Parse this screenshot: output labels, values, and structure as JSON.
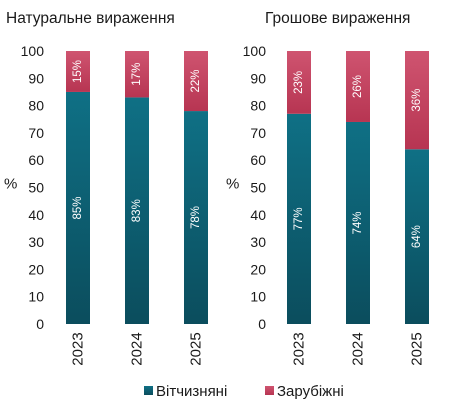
{
  "chart_data": [
    {
      "type": "bar",
      "stacked": true,
      "title": "Натуральне вираження",
      "ylabel": "%",
      "ylim": [
        0,
        100
      ],
      "yticks": [
        "0",
        "10",
        "20",
        "30",
        "40",
        "50",
        "60",
        "70",
        "80",
        "90",
        "100"
      ],
      "categories": [
        "2023",
        "2024",
        "2025"
      ],
      "series": [
        {
          "name": "Вітчизняні",
          "color": "#0f6b80",
          "values": [
            85,
            83,
            78
          ],
          "labels": [
            "85%",
            "83%",
            "78%"
          ]
        },
        {
          "name": "Зарубіжні",
          "color": "#c3415f",
          "values": [
            15,
            17,
            22
          ],
          "labels": [
            "15%",
            "17%",
            "22%"
          ]
        }
      ]
    },
    {
      "type": "bar",
      "stacked": true,
      "title": "Грошове вираження",
      "ylabel": "%",
      "ylim": [
        0,
        100
      ],
      "yticks": [
        "0",
        "10",
        "20",
        "30",
        "40",
        "50",
        "60",
        "70",
        "80",
        "90",
        "100"
      ],
      "categories": [
        "2023",
        "2024",
        "2025"
      ],
      "series": [
        {
          "name": "Вітчизняні",
          "color": "#0f6b80",
          "values": [
            77,
            74,
            64
          ],
          "labels": [
            "77%",
            "74%",
            "64%"
          ]
        },
        {
          "name": "Зарубіжні",
          "color": "#c3415f",
          "values": [
            23,
            26,
            36
          ],
          "labels": [
            "23%",
            "26%",
            "36%"
          ]
        }
      ]
    }
  ],
  "legend": {
    "placement": "bottom",
    "items": [
      {
        "label": "Вітчизняні",
        "color": "#0f6b80"
      },
      {
        "label": "Зарубіжні",
        "color": "#c3415f"
      }
    ]
  }
}
